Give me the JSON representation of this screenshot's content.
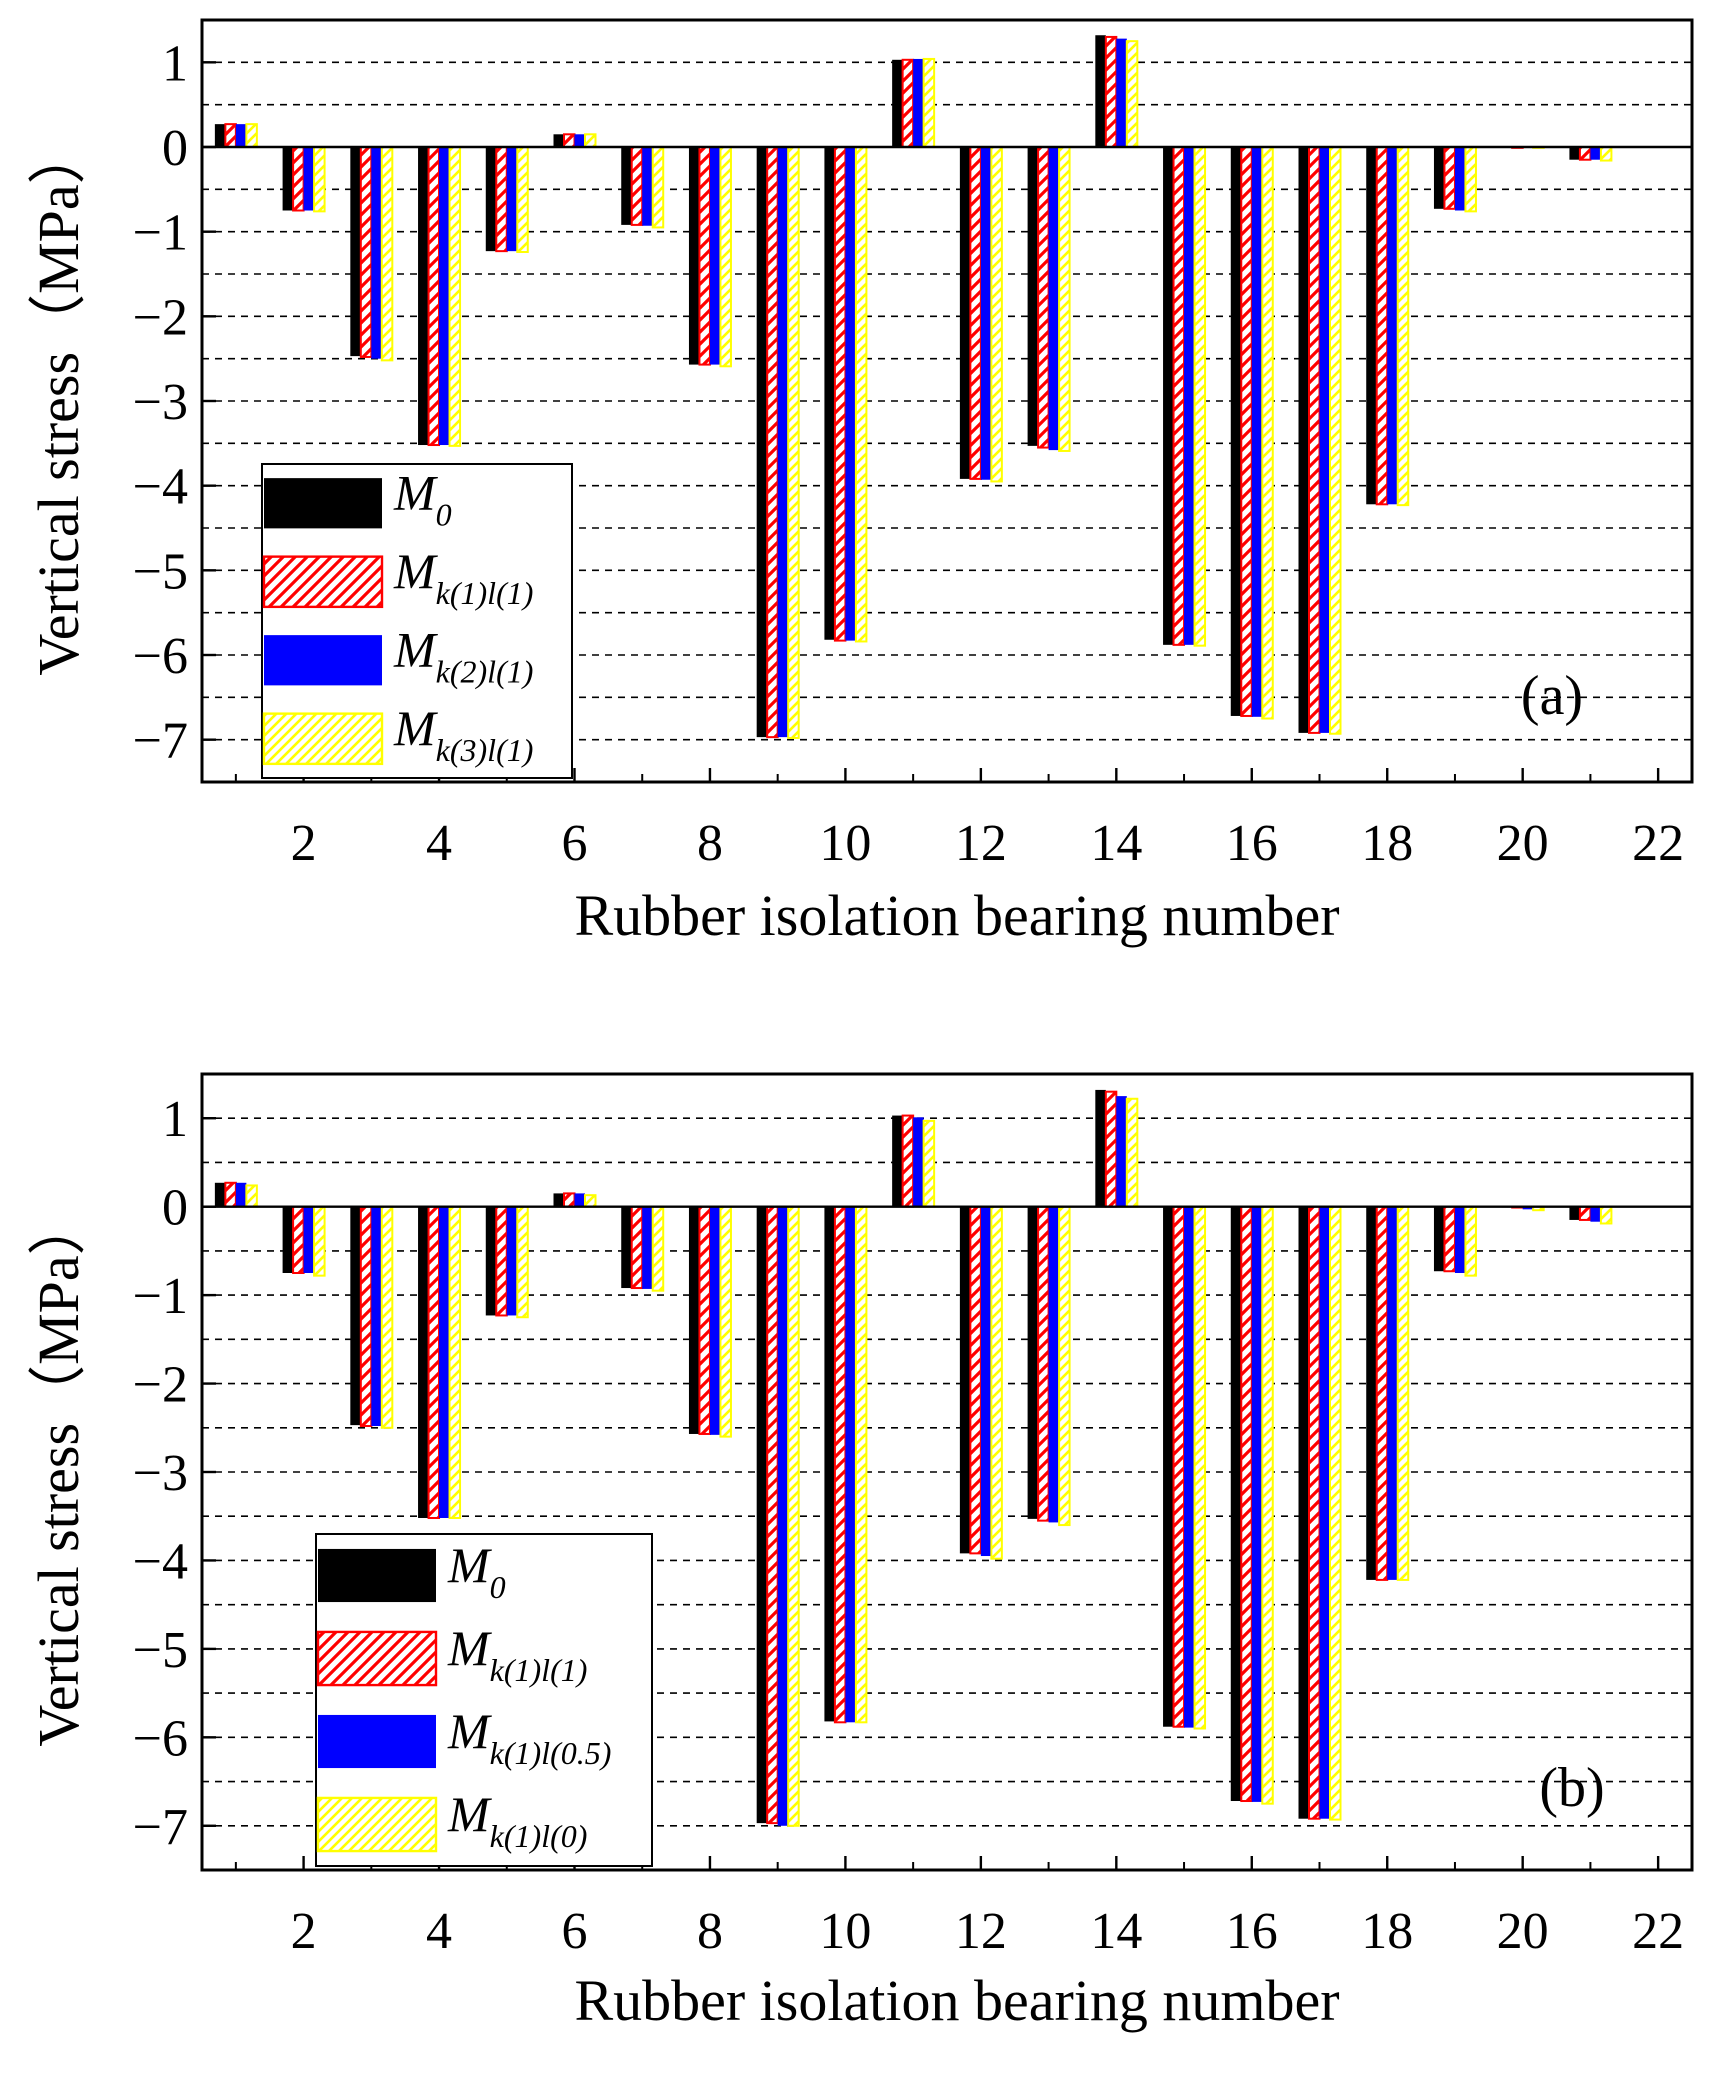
{
  "colors": {
    "m0": "#000000",
    "red": "#ff0000",
    "blue": "#0000ff",
    "yellow": "#ffff00",
    "grid": "#000000"
  },
  "chart_data": [
    {
      "type": "bar",
      "panel_label": "(a)",
      "xlabel": "Rubber isolation bearing number",
      "ylabel": "Vertical stress（MPa）",
      "xlim": [
        0.5,
        22.5
      ],
      "ylim": [
        -7.5,
        1.5
      ],
      "xticks": [
        2,
        4,
        6,
        8,
        10,
        12,
        14,
        16,
        18,
        20,
        22
      ],
      "yticks": [
        1,
        0,
        -1,
        -2,
        -3,
        -4,
        -5,
        -6,
        -7
      ],
      "ytick_labels": [
        "1",
        "0",
        "−1",
        "−2",
        "−3",
        "−4",
        "−5",
        "−6",
        "−7"
      ],
      "grid": "dashed horizontal every 0.5",
      "legend_position": "lower-left",
      "categories": [
        1,
        2,
        3,
        4,
        5,
        6,
        7,
        8,
        9,
        10,
        11,
        12,
        13,
        14,
        15,
        16,
        17,
        18,
        19,
        20,
        21
      ],
      "series": [
        {
          "name": "M0",
          "label_base": "M",
          "label_sub": "0",
          "style": "solid-black",
          "values": [
            0.27,
            -0.75,
            -2.47,
            -3.52,
            -1.23,
            0.15,
            -0.92,
            -2.57,
            -6.97,
            -5.82,
            1.03,
            -3.92,
            -3.53,
            1.32,
            -5.88,
            -6.72,
            -6.92,
            -4.22,
            -0.73,
            -0.01,
            -0.15
          ]
        },
        {
          "name": "Mk(1)l(1)",
          "label_base": "M",
          "label_sub": "k(1)l(1)",
          "style": "hatch-red",
          "values": [
            0.27,
            -0.75,
            -2.48,
            -3.52,
            -1.23,
            0.15,
            -0.92,
            -2.57,
            -6.97,
            -5.83,
            1.03,
            -3.92,
            -3.55,
            1.3,
            -5.88,
            -6.72,
            -6.92,
            -4.22,
            -0.73,
            -0.01,
            -0.15
          ]
        },
        {
          "name": "Mk(2)l(1)",
          "label_base": "M",
          "label_sub": "k(2)l(1)",
          "style": "solid-blue",
          "values": [
            0.27,
            -0.75,
            -2.5,
            -3.52,
            -1.23,
            0.15,
            -0.93,
            -2.57,
            -6.97,
            -5.83,
            1.04,
            -3.93,
            -3.58,
            1.28,
            -5.88,
            -6.73,
            -6.92,
            -4.22,
            -0.75,
            -0.01,
            -0.15
          ]
        },
        {
          "name": "Mk(3)l(1)",
          "label_base": "M",
          "label_sub": "k(3)l(1)",
          "style": "hatch-yellow",
          "values": [
            0.27,
            -0.76,
            -2.52,
            -3.53,
            -1.24,
            0.15,
            -0.95,
            -2.59,
            -6.98,
            -5.84,
            1.04,
            -3.95,
            -3.59,
            1.25,
            -5.89,
            -6.75,
            -6.93,
            -4.23,
            -0.76,
            -0.01,
            -0.16
          ]
        }
      ]
    },
    {
      "type": "bar",
      "panel_label": "(b)",
      "xlabel": "Rubber isolation bearing number",
      "ylabel": "Vertical stress（MPa）",
      "xlim": [
        0.5,
        22.5
      ],
      "ylim": [
        -7.5,
        1.5
      ],
      "xticks": [
        2,
        4,
        6,
        8,
        10,
        12,
        14,
        16,
        18,
        20,
        22
      ],
      "yticks": [
        1,
        0,
        -1,
        -2,
        -3,
        -4,
        -5,
        -6,
        -7
      ],
      "ytick_labels": [
        "1",
        "0",
        "−1",
        "−2",
        "−3",
        "−4",
        "−5",
        "−6",
        "−7"
      ],
      "grid": "dashed horizontal every 0.5",
      "legend_position": "lower-left",
      "categories": [
        1,
        2,
        3,
        4,
        5,
        6,
        7,
        8,
        9,
        10,
        11,
        12,
        13,
        14,
        15,
        16,
        17,
        18,
        19,
        20,
        21
      ],
      "series": [
        {
          "name": "M0",
          "label_base": "M",
          "label_sub": "0",
          "style": "solid-black",
          "values": [
            0.27,
            -0.75,
            -2.47,
            -3.52,
            -1.23,
            0.15,
            -0.92,
            -2.57,
            -6.97,
            -5.82,
            1.03,
            -3.92,
            -3.53,
            1.32,
            -5.88,
            -6.72,
            -6.92,
            -4.22,
            -0.73,
            -0.01,
            -0.15
          ]
        },
        {
          "name": "Mk(1)l(1)",
          "label_base": "M",
          "label_sub": "k(1)l(1)",
          "style": "hatch-red",
          "values": [
            0.27,
            -0.75,
            -2.48,
            -3.52,
            -1.23,
            0.15,
            -0.92,
            -2.57,
            -6.97,
            -5.83,
            1.03,
            -3.92,
            -3.55,
            1.3,
            -5.88,
            -6.72,
            -6.92,
            -4.22,
            -0.73,
            -0.01,
            -0.15
          ]
        },
        {
          "name": "Mk(1)l(0.5)",
          "label_base": "M",
          "label_sub": "k(1)l(0.5)",
          "style": "solid-blue",
          "values": [
            0.27,
            -0.75,
            -2.48,
            -3.52,
            -1.23,
            0.15,
            -0.93,
            -2.58,
            -7.0,
            -5.83,
            1.01,
            -3.95,
            -3.57,
            1.25,
            -5.89,
            -6.73,
            -6.92,
            -4.22,
            -0.75,
            -0.03,
            -0.17
          ]
        },
        {
          "name": "Mk(1)l(0)",
          "label_base": "M",
          "label_sub": "k(1)l(0)",
          "style": "hatch-yellow",
          "values": [
            0.24,
            -0.78,
            -2.5,
            -3.52,
            -1.25,
            0.13,
            -0.95,
            -2.6,
            -7.0,
            -5.83,
            0.97,
            -3.98,
            -3.6,
            1.22,
            -5.9,
            -6.75,
            -6.93,
            -4.22,
            -0.78,
            -0.04,
            -0.19
          ]
        }
      ]
    }
  ]
}
